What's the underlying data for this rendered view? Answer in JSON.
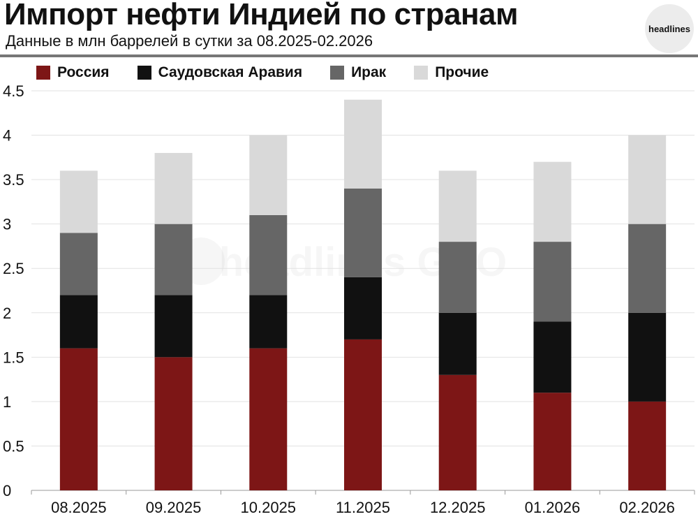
{
  "header": {
    "title": "Импорт нефти Индией по странам",
    "subtitle": "Данные в млн баррелей в сутки за 08.2025-02.2026",
    "logo": "headlines"
  },
  "watermark": "headlines GEO",
  "chart_data": {
    "type": "bar",
    "stacked": true,
    "title": "Импорт нефти Индией по странам",
    "subtitle": "Данные в млн баррелей в сутки за 08.2025-02.2026",
    "categories": [
      "08.2025",
      "09.2025",
      "10.2025",
      "11.2025",
      "12.2025",
      "01.2026",
      "02.2026"
    ],
    "series": [
      {
        "name": "Россия",
        "color": "#7d1616",
        "values": [
          1.6,
          1.5,
          1.6,
          1.7,
          1.3,
          1.1,
          1.0
        ]
      },
      {
        "name": "Саудовская Аравия",
        "color": "#111111",
        "values": [
          0.6,
          0.7,
          0.6,
          0.7,
          0.7,
          0.8,
          1.0
        ]
      },
      {
        "name": "Ирак",
        "color": "#666666",
        "values": [
          0.7,
          0.8,
          0.9,
          1.0,
          0.8,
          0.9,
          1.0
        ]
      },
      {
        "name": "Прочие",
        "color": "#d9d9d9",
        "values": [
          0.7,
          0.8,
          0.9,
          1.0,
          0.8,
          0.9,
          1.0
        ]
      }
    ],
    "ylim": [
      0,
      4.5
    ],
    "yticks": [
      "0",
      "0.5",
      "1",
      "1.5",
      "2",
      "2.5",
      "3",
      "3.5",
      "4",
      "4.5"
    ],
    "grid": true,
    "legend": "top"
  }
}
